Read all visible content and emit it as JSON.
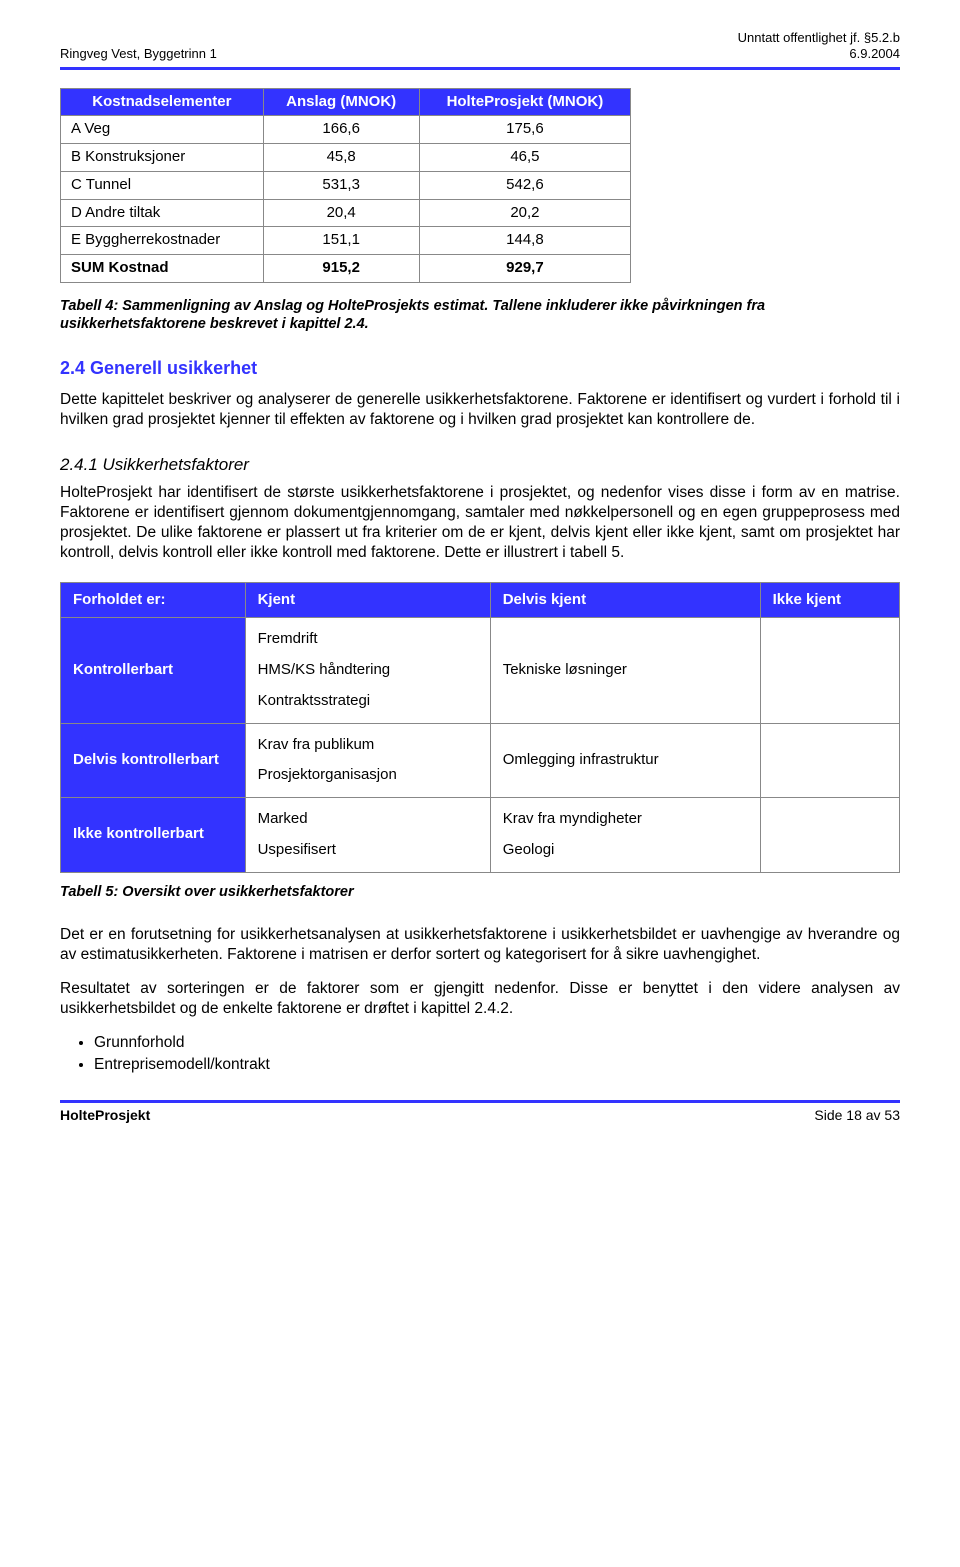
{
  "header": {
    "left": "Ringveg Vest, Byggetrinn 1",
    "right_top": "Unntatt offentlighet jf. §5.2.b",
    "right_bottom": "6.9.2004"
  },
  "cost_table": {
    "columns": [
      "Kostnadselementer",
      "Anslag (MNOK)",
      "HolteProsjekt (MNOK)"
    ],
    "rows": [
      {
        "label": "A Veg",
        "a": "166,6",
        "b": "175,6",
        "bold": false
      },
      {
        "label": "B Konstruksjoner",
        "a": "45,8",
        "b": "46,5",
        "bold": false
      },
      {
        "label": "C Tunnel",
        "a": "531,3",
        "b": "542,6",
        "bold": false
      },
      {
        "label": "D Andre tiltak",
        "a": "20,4",
        "b": "20,2",
        "bold": false
      },
      {
        "label": "E Byggherrekostnader",
        "a": "151,1",
        "b": "144,8",
        "bold": false
      },
      {
        "label": "SUM Kostnad",
        "a": "915,2",
        "b": "929,7",
        "bold": true
      }
    ],
    "caption": "Tabell 4: Sammenligning av Anslag og HolteProsjekts estimat. Tallene inkluderer ikke påvirkningen fra usikkerhetsfaktorene beskrevet i kapittel 2.4.",
    "header_bg": "#3333ff",
    "header_fg": "#ffffff",
    "border_color": "#888888"
  },
  "section24": {
    "heading": "2.4   Generell usikkerhet",
    "para": "Dette kapittelet beskriver og analyserer de generelle usikkerhetsfaktorene. Faktorene er identifisert og vurdert i forhold til i hvilken grad prosjektet kjenner til effekten av faktorene og i hvilken grad prosjektet kan kontrollere de."
  },
  "section241": {
    "heading": "2.4.1   Usikkerhetsfaktorer",
    "para": "HolteProsjekt har identifisert de største usikkerhetsfaktorene i prosjektet, og nedenfor vises disse i form av en matrise. Faktorene er identifisert gjennom dokumentgjennomgang, samtaler med nøkkelpersonell og en egen gruppeprosess med prosjektet. De ulike faktorene er plassert ut fra kriterier om de er kjent, delvis kjent eller ikke kjent, samt om prosjektet har kontroll, delvis kontroll eller ikke kontroll med faktorene. Dette er illustrert i tabell 5."
  },
  "matrix": {
    "col_headers": [
      "Forholdet er:",
      "Kjent",
      "Delvis kjent",
      "Ikke kjent"
    ],
    "rows": [
      {
        "row_header": "Kontrollerbart",
        "kjent": [
          "Fremdrift",
          "HMS/KS håndtering",
          "Kontraktsstrategi"
        ],
        "delvis": [
          "Tekniske løsninger"
        ],
        "ikke": []
      },
      {
        "row_header": "Delvis kontrollerbart",
        "kjent": [
          "Krav fra publikum",
          "Prosjektorganisasjon"
        ],
        "delvis": [
          "Omlegging infrastruktur"
        ],
        "ikke": []
      },
      {
        "row_header": "Ikke kontrollerbart",
        "kjent": [
          "Marked",
          "Uspesifisert"
        ],
        "delvis": [
          "Krav fra myndigheter",
          "Geologi"
        ],
        "ikke": []
      }
    ],
    "caption": "Tabell 5: Oversikt over usikkerhetsfaktorer",
    "header_bg": "#3333ff",
    "header_fg": "#ffffff"
  },
  "post_paras": [
    "Det er en forutsetning for usikkerhetsanalysen at usikkerhetsfaktorene i usikkerhetsbildet er uavhengige av hverandre og av estimatusikkerheten. Faktorene i matrisen er derfor sortert og kategorisert for å sikre uavhengighet.",
    "Resultatet av sorteringen er de faktorer som er gjengitt nedenfor. Disse er benyttet i den videre analysen av usikkerhetsbildet og de enkelte faktorene er drøftet i kapittel 2.4.2."
  ],
  "bullets": [
    "Grunnforhold",
    "Entreprisemodell/kontrakt"
  ],
  "footer": {
    "left": "HolteProsjekt",
    "right": "Side 18 av 53"
  },
  "colors": {
    "accent": "#3333ff",
    "text": "#000000",
    "background": "#ffffff"
  }
}
